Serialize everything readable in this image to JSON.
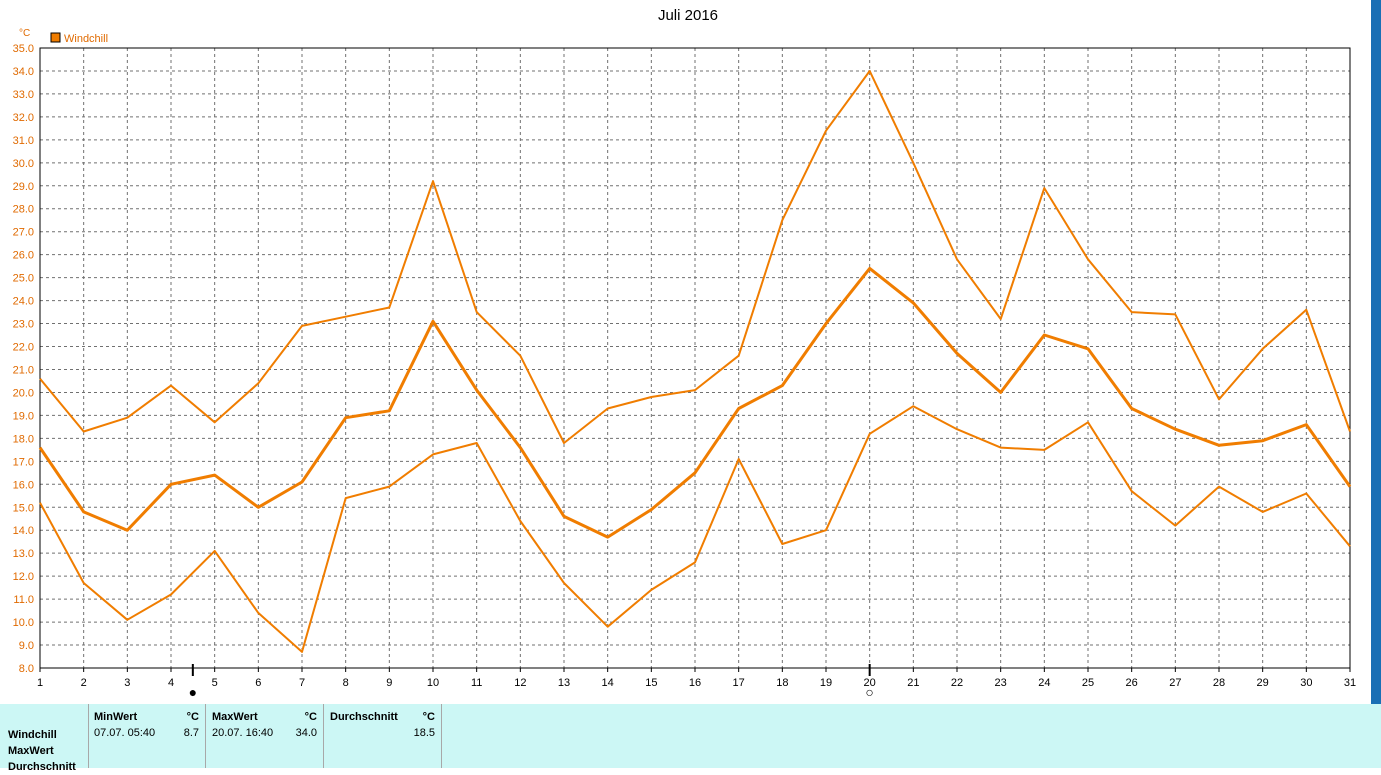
{
  "chart_data": {
    "type": "line",
    "title": "Juli 2016",
    "ylabel": "°C",
    "legend": "Windchill",
    "legend_placement": "top-left",
    "grid": true,
    "color": "#f07d00",
    "x": [
      1,
      2,
      3,
      4,
      5,
      6,
      7,
      8,
      9,
      10,
      11,
      12,
      13,
      14,
      15,
      16,
      17,
      18,
      19,
      20,
      21,
      22,
      23,
      24,
      25,
      26,
      27,
      28,
      29,
      30,
      31
    ],
    "ylim": [
      8.0,
      35.0
    ],
    "ytick_step": 1.0,
    "series": [
      {
        "values": [
          20.6,
          18.3,
          18.9,
          20.3,
          18.7,
          20.4,
          22.9,
          23.3,
          23.7,
          29.2,
          23.5,
          21.6,
          17.8,
          19.3,
          19.8,
          20.1,
          21.6,
          27.5,
          31.4,
          34.0,
          30.0,
          25.8,
          23.2,
          28.9,
          25.8,
          23.5,
          23.4,
          19.7,
          21.9,
          23.6,
          18.3
        ]
      },
      {
        "values": [
          17.6,
          14.8,
          14.0,
          16.0,
          16.4,
          15.0,
          16.1,
          18.9,
          19.2,
          23.1,
          20.1,
          17.6,
          14.6,
          13.7,
          14.9,
          16.5,
          19.3,
          20.3,
          23.0,
          25.4,
          23.9,
          21.7,
          20.0,
          22.5,
          21.9,
          19.3,
          18.4,
          17.7,
          17.9,
          18.6,
          15.9
        ]
      },
      {
        "values": [
          15.2,
          11.7,
          10.1,
          11.2,
          13.1,
          10.4,
          8.7,
          15.4,
          15.9,
          17.3,
          17.8,
          14.4,
          11.7,
          9.8,
          11.4,
          12.6,
          17.1,
          13.4,
          14.0,
          18.2,
          19.4,
          18.4,
          17.6,
          17.5,
          18.7,
          15.7,
          14.2,
          15.9,
          14.8,
          15.6,
          13.3
        ]
      }
    ],
    "markers": [
      {
        "x": 4.5,
        "symbol": "●"
      },
      {
        "x": 20,
        "symbol": "○"
      }
    ]
  },
  "stats": {
    "row_labels": [
      "Windchill",
      "MaxWert",
      "Durchschnitt"
    ],
    "min": {
      "header": "MinWert",
      "unit": "°C",
      "when": "07.07.  05:40",
      "value": "8.7"
    },
    "max": {
      "header": "MaxWert",
      "unit": "°C",
      "when": "20.07.  16:40",
      "value": "34.0"
    },
    "avg": {
      "header": "Durchschnitt",
      "unit": "°C",
      "value": "18.5"
    }
  }
}
